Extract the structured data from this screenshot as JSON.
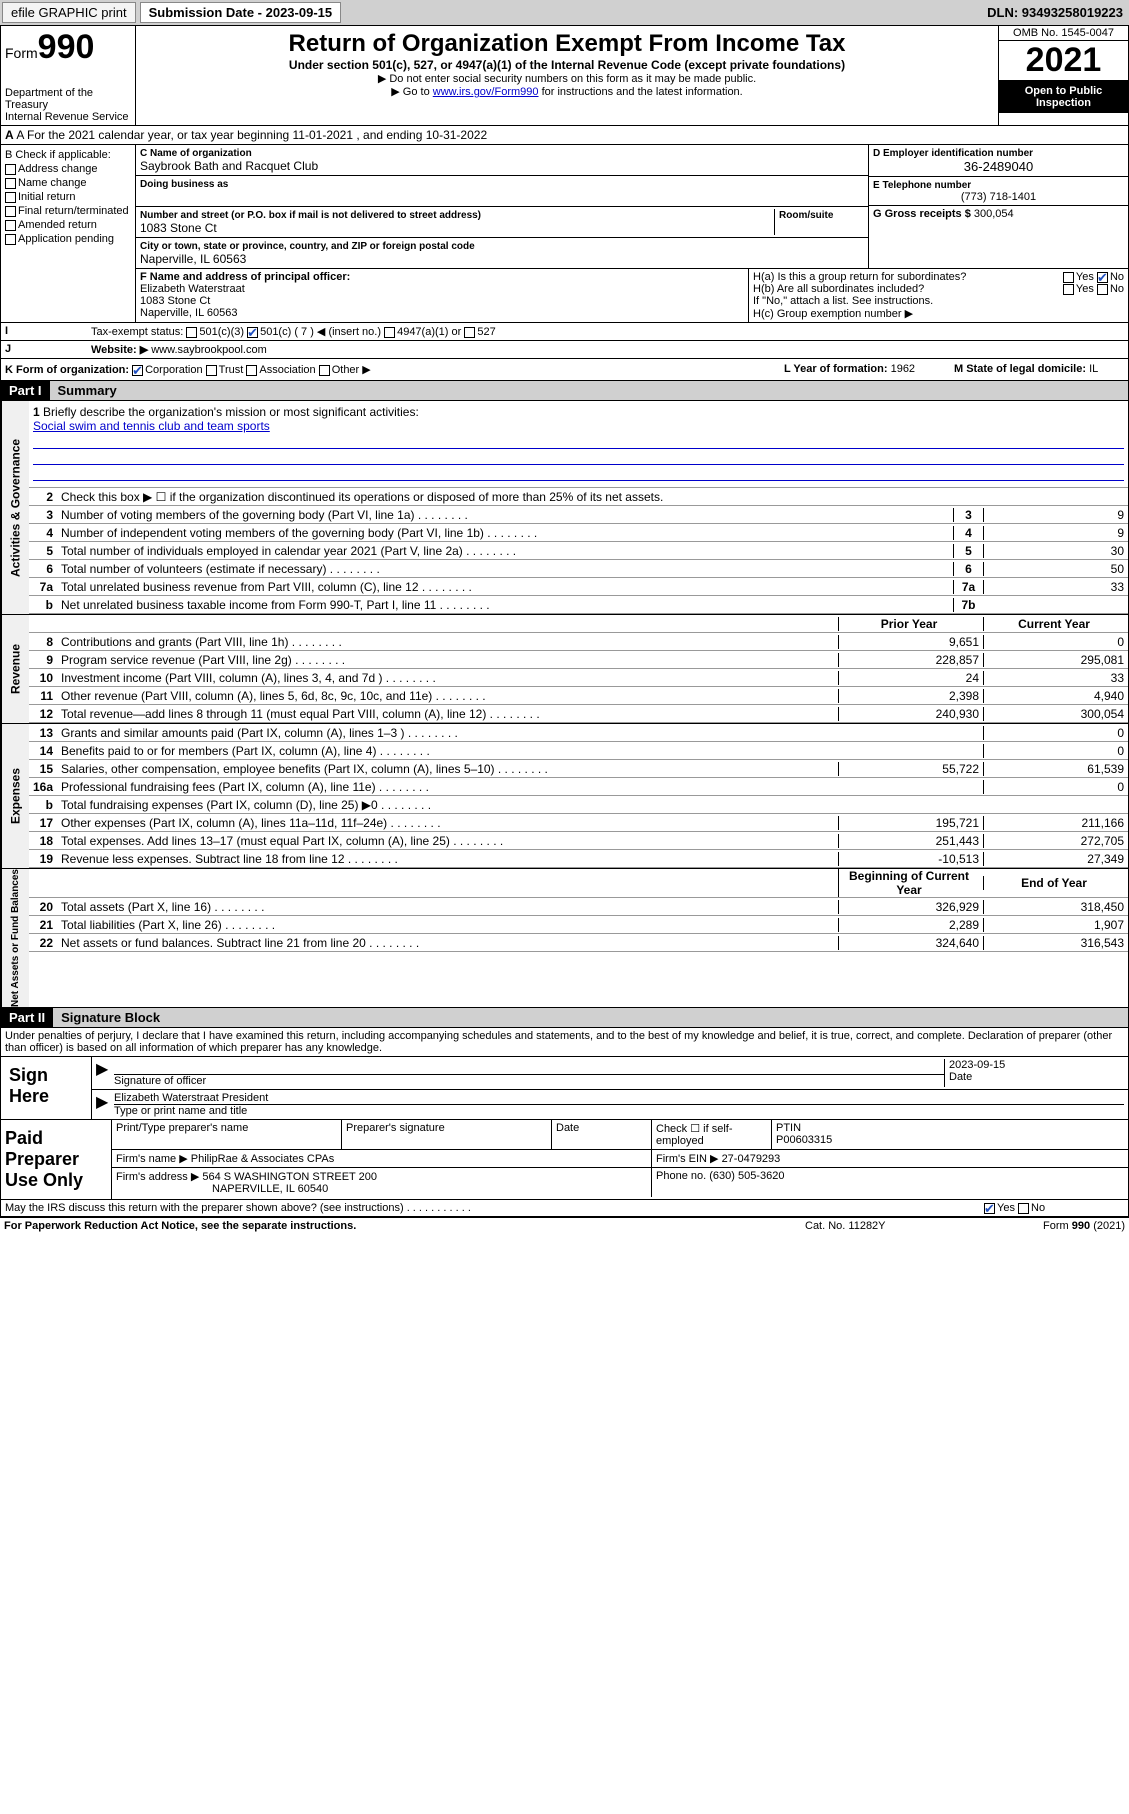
{
  "topbar": {
    "efile": "efile GRAPHIC print",
    "submission_label": "Submission Date - 2023-09-15",
    "dln": "DLN: 93493258019223"
  },
  "header": {
    "form_word": "Form",
    "form_num": "990",
    "dept": "Department of the Treasury",
    "irs": "Internal Revenue Service",
    "title": "Return of Organization Exempt From Income Tax",
    "subtitle": "Under section 501(c), 527, or 4947(a)(1) of the Internal Revenue Code (except private foundations)",
    "note1": "▶ Do not enter social security numbers on this form as it may be made public.",
    "note2_pre": "▶ Go to ",
    "note2_link": "www.irs.gov/Form990",
    "note2_post": " for instructions and the latest information.",
    "omb": "OMB No. 1545-0047",
    "year": "2021",
    "open": "Open to Public Inspection"
  },
  "rowA": "A For the 2021 calendar year, or tax year beginning 11-01-2021   , and ending 10-31-2022",
  "colB": {
    "title": "B Check if applicable:",
    "items": [
      "Address change",
      "Name change",
      "Initial return",
      "Final return/terminated",
      "Amended return",
      "Application pending"
    ]
  },
  "colC": {
    "name_lbl": "C Name of organization",
    "name": "Saybrook Bath and Racquet Club",
    "dba_lbl": "Doing business as",
    "dba": "",
    "addr_lbl": "Number and street (or P.O. box if mail is not delivered to street address)",
    "room_lbl": "Room/suite",
    "addr": "1083 Stone Ct",
    "city_lbl": "City or town, state or province, country, and ZIP or foreign postal code",
    "city": "Naperville, IL  60563"
  },
  "colD": {
    "ein_lbl": "D Employer identification number",
    "ein": "36-2489040",
    "tel_lbl": "E Telephone number",
    "tel": "(773) 718-1401",
    "gross_lbl": "G Gross receipts $",
    "gross": "300,054"
  },
  "rowF": {
    "lbl": "F Name and address of principal officer:",
    "name": "Elizabeth Waterstraat",
    "addr": "1083 Stone Ct",
    "city": "Naperville, IL  60563"
  },
  "rowH": {
    "ha": "H(a)  Is this a group return for subordinates?",
    "hb": "H(b)  Are all subordinates included?",
    "hb_note": "If \"No,\" attach a list. See instructions.",
    "hc": "H(c)  Group exemption number ▶"
  },
  "rowI": {
    "lbl": "Tax-exempt status:",
    "opts": [
      "501(c)(3)",
      "501(c) ( 7 ) ◀ (insert no.)",
      "4947(a)(1) or",
      "527"
    ]
  },
  "rowJ": {
    "lbl": "Website: ▶",
    "val": "www.saybrookpool.com"
  },
  "rowK": {
    "lbl": "K Form of organization:",
    "opts": [
      "Corporation",
      "Trust",
      "Association",
      "Other ▶"
    ],
    "L_lbl": "L Year of formation:",
    "L_val": "1962",
    "M_lbl": "M State of legal domicile:",
    "M_val": "IL"
  },
  "part1": {
    "num": "Part I",
    "title": "Summary"
  },
  "briefly": {
    "n": "1",
    "t": "Briefly describe the organization's mission or most significant activities:",
    "mission": "Social swim and tennis club and team sports"
  },
  "line2": "Check this box ▶ ☐  if the organization discontinued its operations or disposed of more than 25% of its net assets.",
  "gov_lines": [
    {
      "n": "3",
      "t": "Number of voting members of the governing body (Part VI, line 1a)",
      "box": "3",
      "v": "9"
    },
    {
      "n": "4",
      "t": "Number of independent voting members of the governing body (Part VI, line 1b)",
      "box": "4",
      "v": "9"
    },
    {
      "n": "5",
      "t": "Total number of individuals employed in calendar year 2021 (Part V, line 2a)",
      "box": "5",
      "v": "30"
    },
    {
      "n": "6",
      "t": "Total number of volunteers (estimate if necessary)",
      "box": "6",
      "v": "50"
    },
    {
      "n": "7a",
      "t": "Total unrelated business revenue from Part VIII, column (C), line 12",
      "box": "7a",
      "v": "33"
    },
    {
      "n": "b",
      "t": "Net unrelated business taxable income from Form 990-T, Part I, line 11",
      "box": "7b",
      "v": ""
    }
  ],
  "col_hdr": {
    "prior": "Prior Year",
    "current": "Current Year"
  },
  "rev_lines": [
    {
      "n": "8",
      "t": "Contributions and grants (Part VIII, line 1h)",
      "p": "9,651",
      "c": "0"
    },
    {
      "n": "9",
      "t": "Program service revenue (Part VIII, line 2g)",
      "p": "228,857",
      "c": "295,081"
    },
    {
      "n": "10",
      "t": "Investment income (Part VIII, column (A), lines 3, 4, and 7d )",
      "p": "24",
      "c": "33"
    },
    {
      "n": "11",
      "t": "Other revenue (Part VIII, column (A), lines 5, 6d, 8c, 9c, 10c, and 11e)",
      "p": "2,398",
      "c": "4,940"
    },
    {
      "n": "12",
      "t": "Total revenue—add lines 8 through 11 (must equal Part VIII, column (A), line 12)",
      "p": "240,930",
      "c": "300,054"
    }
  ],
  "exp_lines": [
    {
      "n": "13",
      "t": "Grants and similar amounts paid (Part IX, column (A), lines 1–3 )",
      "p": "",
      "c": "0"
    },
    {
      "n": "14",
      "t": "Benefits paid to or for members (Part IX, column (A), line 4)",
      "p": "",
      "c": "0"
    },
    {
      "n": "15",
      "t": "Salaries, other compensation, employee benefits (Part IX, column (A), lines 5–10)",
      "p": "55,722",
      "c": "61,539"
    },
    {
      "n": "16a",
      "t": "Professional fundraising fees (Part IX, column (A), line 11e)",
      "p": "",
      "c": "0"
    },
    {
      "n": "b",
      "t": "Total fundraising expenses (Part IX, column (D), line 25) ▶0",
      "p": "—grey—",
      "c": "—grey—"
    },
    {
      "n": "17",
      "t": "Other expenses (Part IX, column (A), lines 11a–11d, 11f–24e)",
      "p": "195,721",
      "c": "211,166"
    },
    {
      "n": "18",
      "t": "Total expenses. Add lines 13–17 (must equal Part IX, column (A), line 25)",
      "p": "251,443",
      "c": "272,705"
    },
    {
      "n": "19",
      "t": "Revenue less expenses. Subtract line 18 from line 12",
      "p": "-10,513",
      "c": "27,349"
    }
  ],
  "na_hdr": {
    "beg": "Beginning of Current Year",
    "end": "End of Year"
  },
  "na_lines": [
    {
      "n": "20",
      "t": "Total assets (Part X, line 16)",
      "p": "326,929",
      "c": "318,450"
    },
    {
      "n": "21",
      "t": "Total liabilities (Part X, line 26)",
      "p": "2,289",
      "c": "1,907"
    },
    {
      "n": "22",
      "t": "Net assets or fund balances. Subtract line 21 from line 20",
      "p": "324,640",
      "c": "316,543"
    }
  ],
  "vtabs": {
    "gov": "Activities & Governance",
    "rev": "Revenue",
    "exp": "Expenses",
    "na": "Net Assets or Fund Balances"
  },
  "part2": {
    "num": "Part II",
    "title": "Signature Block"
  },
  "decl": "Under penalties of perjury, I declare that I have examined this return, including accompanying schedules and statements, and to the best of my knowledge and belief, it is true, correct, and complete. Declaration of preparer (other than officer) is based on all information of which preparer has any knowledge.",
  "sign": {
    "here": "Sign Here",
    "sig_lbl": "Signature of officer",
    "date_lbl": "Date",
    "date": "2023-09-15",
    "name": "Elizabeth Waterstraat President",
    "name_lbl": "Type or print name and title"
  },
  "prep": {
    "lbl": "Paid Preparer Use Only",
    "h1": "Print/Type preparer's name",
    "h2": "Preparer's signature",
    "h3": "Date",
    "h4": "Check ☐ if self-employed",
    "h5": "PTIN",
    "ptin": "P00603315",
    "firm_lbl": "Firm's name    ▶",
    "firm": "PhilipRae & Associates CPAs",
    "ein_lbl": "Firm's EIN ▶",
    "ein": "27-0479293",
    "addr_lbl": "Firm's address ▶",
    "addr1": "564 S WASHINGTON STREET 200",
    "addr2": "NAPERVILLE, IL  60540",
    "phone_lbl": "Phone no.",
    "phone": "(630) 505-3620"
  },
  "discuss": "May the IRS discuss this return with the preparer shown above? (see instructions)",
  "footer": {
    "pra": "For Paperwork Reduction Act Notice, see the separate instructions.",
    "cat": "Cat. No. 11282Y",
    "form": "Form 990 (2021)"
  }
}
